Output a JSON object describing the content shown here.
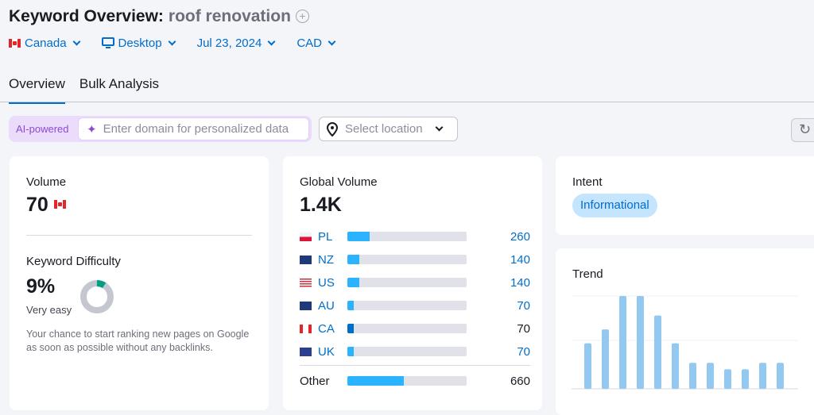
{
  "header": {
    "title": "Keyword Overview:",
    "keyword": "roof renovation"
  },
  "filters": {
    "country": "Canada",
    "device": "Desktop",
    "date": "Jul 23, 2024",
    "currency": "CAD"
  },
  "tabs": [
    {
      "label": "Overview",
      "active": true
    },
    {
      "label": "Bulk Analysis",
      "active": false
    }
  ],
  "ai": {
    "badge": "AI-powered",
    "placeholder": "Enter domain for personalized data"
  },
  "location": {
    "placeholder": "Select location"
  },
  "volume": {
    "label": "Volume",
    "value": "70"
  },
  "kd": {
    "label": "Keyword Difficulty",
    "value": "9%",
    "percent": 9,
    "level": "Very easy",
    "description": "Your chance to start ranking new pages on Google as soon as possible without any backlinks.",
    "color": "#009f81"
  },
  "global": {
    "label": "Global Volume",
    "value": "1.4K",
    "total": 1400,
    "rows": [
      {
        "code": "PL",
        "value": "260",
        "n": 260,
        "link": true
      },
      {
        "code": "NZ",
        "value": "140",
        "n": 140,
        "link": true
      },
      {
        "code": "US",
        "value": "140",
        "n": 140,
        "link": true
      },
      {
        "code": "AU",
        "value": "70",
        "n": 70,
        "link": true
      },
      {
        "code": "CA",
        "value": "70",
        "n": 70,
        "link": false,
        "current": true
      },
      {
        "code": "UK",
        "value": "70",
        "n": 70,
        "link": true
      }
    ],
    "other": {
      "label": "Other",
      "value": "660",
      "n": 660
    }
  },
  "intent": {
    "label": "Intent",
    "badge": "Informational"
  },
  "trend": {
    "label": "Trend",
    "values": [
      0.49,
      0.64,
      1,
      1,
      0.79,
      0.49,
      0.28,
      0.28,
      0.21,
      0.21,
      0.28,
      0.28
    ],
    "color": "#93c8f0"
  }
}
